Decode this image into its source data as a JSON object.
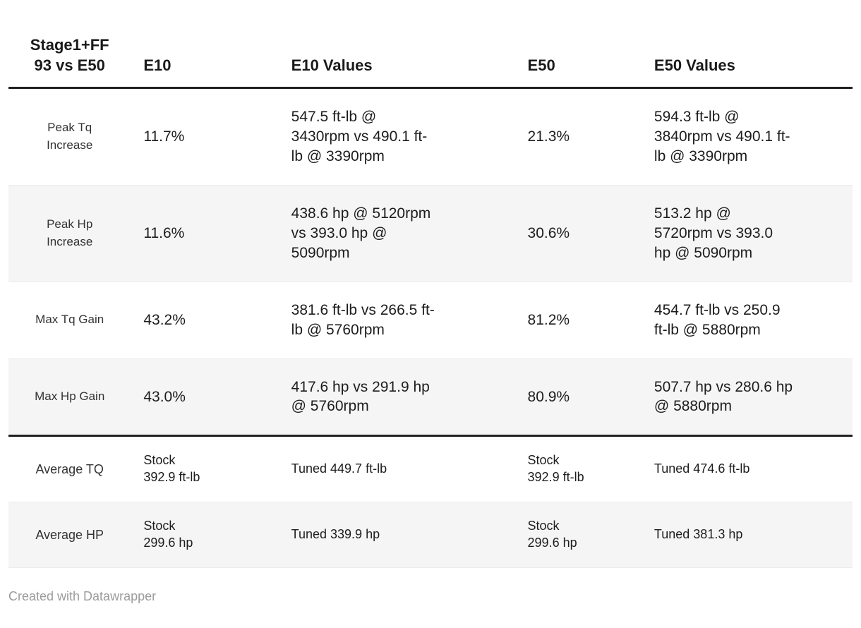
{
  "colors": {
    "background": "#ffffff",
    "stripe": "#f5f5f5",
    "rule_dark": "#212121",
    "row_divider": "#ebebeb",
    "text": "#1d1d1d",
    "muted_text": "#9b9b9b"
  },
  "header": {
    "columns": [
      "Stage1+FF\n93 vs E50",
      "E10",
      "E10 Values",
      "E50",
      "E50 Values"
    ]
  },
  "table": {
    "rows": [
      {
        "cells": [
          "Peak Tq\nIncrease",
          "11.7%",
          "547.5 ft-lb @\n3430rpm vs 490.1 ft-\nlb @ 3390rpm",
          "21.3%",
          "594.3 ft-lb @\n3840rpm vs 490.1 ft-\nlb @ 3390rpm"
        ]
      },
      {
        "cells": [
          "Peak Hp\nIncrease",
          "11.6%",
          "438.6 hp @ 5120rpm\nvs 393.0 hp @\n5090rpm",
          "30.6%",
          "513.2 hp @\n5720rpm vs 393.0\nhp @ 5090rpm"
        ]
      },
      {
        "cells": [
          "Max Tq Gain",
          "43.2%",
          "381.6 ft-lb vs 266.5 ft-\nlb @ 5760rpm",
          "81.2%",
          "454.7 ft-lb vs 250.9\nft-lb @ 5880rpm"
        ]
      },
      {
        "cells": [
          "Max Hp Gain",
          "43.0%",
          "417.6 hp vs 291.9 hp\n@ 5760rpm",
          "80.9%",
          "507.7 hp vs 280.6 hp\n@ 5880rpm"
        ]
      },
      {
        "cells": [
          "Average TQ",
          "Stock\n392.9 ft-lb",
          "Tuned 449.7 ft-lb",
          "Stock\n392.9 ft-lb",
          "Tuned 474.6 ft-lb"
        ]
      },
      {
        "cells": [
          "Average HP",
          "Stock\n299.6 hp",
          "Tuned 339.9 hp",
          "Stock\n299.6 hp",
          "Tuned 381.3 hp"
        ]
      }
    ]
  },
  "footer": {
    "credit": "Created with Datawrapper"
  },
  "chart_data": {
    "type": "table",
    "title": "Stage1+FF 93 vs E50",
    "columns": [
      "Stage1+FF 93 vs E50",
      "E10",
      "E10 Values",
      "E50",
      "E50 Values"
    ],
    "rows": [
      [
        "Peak Tq Increase",
        "11.7%",
        "547.5 ft-lb @ 3430rpm vs 490.1 ft-lb @ 3390rpm",
        "21.3%",
        "594.3 ft-lb @ 3840rpm vs 490.1 ft-lb @ 3390rpm"
      ],
      [
        "Peak Hp Increase",
        "11.6%",
        "438.6 hp @ 5120rpm vs 393.0 hp @ 5090rpm",
        "30.6%",
        "513.2 hp @ 5720rpm vs 393.0 hp @ 5090rpm"
      ],
      [
        "Max Tq Gain",
        "43.2%",
        "381.6 ft-lb vs 266.5 ft-lb @ 5760rpm",
        "81.2%",
        "454.7 ft-lb vs 250.9 ft-lb @ 5880rpm"
      ],
      [
        "Max Hp Gain",
        "43.0%",
        "417.6 hp vs 291.9 hp @ 5760rpm",
        "80.9%",
        "507.7 hp vs 280.6 hp @ 5880rpm"
      ],
      [
        "Average TQ",
        "Stock 392.9 ft-lb",
        "Tuned 449.7 ft-lb",
        "Stock 392.9 ft-lb",
        "Tuned 474.6 ft-lb"
      ],
      [
        "Average HP",
        "Stock 299.6 hp",
        "Tuned 339.9 hp",
        "Stock 299.6 hp",
        "Tuned 381.3 hp"
      ]
    ],
    "layout": {
      "zebra_striping": true,
      "thick_rule_after_rows": [
        "header",
        "Max Hp Gain"
      ],
      "first_column_alignment": "center",
      "other_columns_alignment": "left"
    }
  }
}
